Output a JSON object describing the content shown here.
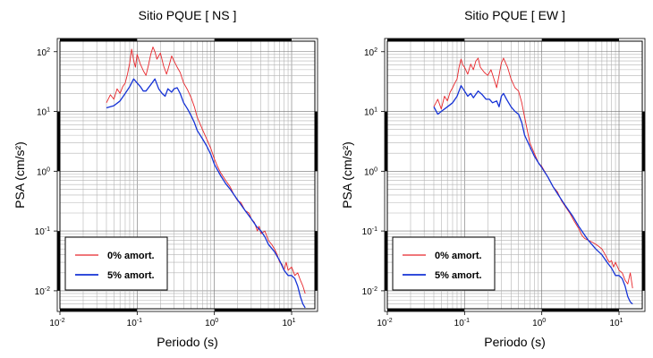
{
  "chart_data": [
    {
      "type": "line",
      "title": "Sitio PQUE [ NS ]",
      "xlabel": "Periodo (s)",
      "ylabel": "PSA (cm/s²)",
      "xscale": "log",
      "yscale": "log",
      "xlim": [
        0.01,
        20
      ],
      "ylim": [
        0.005,
        150
      ],
      "grid": true,
      "legend": "bottom-left",
      "x_ticks": [
        {
          "base": "10",
          "exp": "-2",
          "value": 0.01
        },
        {
          "base": "10",
          "exp": "-1",
          "value": 0.1
        },
        {
          "base": "10",
          "exp": "0",
          "value": 1
        },
        {
          "base": "10",
          "exp": "1",
          "value": 10
        }
      ],
      "y_ticks": [
        {
          "base": "10",
          "exp": "-2",
          "value": 0.01
        },
        {
          "base": "10",
          "exp": "-1",
          "value": 0.1
        },
        {
          "base": "10",
          "exp": "0",
          "value": 1
        },
        {
          "base": "10",
          "exp": "1",
          "value": 10
        },
        {
          "base": "10",
          "exp": "2",
          "value": 100
        }
      ],
      "series": [
        {
          "name": "0% amort.",
          "color": "#e8262b",
          "points": [
            [
              0.04,
              14
            ],
            [
              0.045,
              19
            ],
            [
              0.05,
              16
            ],
            [
              0.055,
              24
            ],
            [
              0.06,
              20
            ],
            [
              0.065,
              26
            ],
            [
              0.07,
              30
            ],
            [
              0.075,
              42
            ],
            [
              0.08,
              65
            ],
            [
              0.085,
              110
            ],
            [
              0.09,
              72
            ],
            [
              0.095,
              55
            ],
            [
              0.1,
              90
            ],
            [
              0.11,
              62
            ],
            [
              0.12,
              48
            ],
            [
              0.13,
              40
            ],
            [
              0.14,
              60
            ],
            [
              0.15,
              90
            ],
            [
              0.16,
              120
            ],
            [
              0.17,
              100
            ],
            [
              0.18,
              75
            ],
            [
              0.2,
              95
            ],
            [
              0.22,
              58
            ],
            [
              0.24,
              42
            ],
            [
              0.26,
              60
            ],
            [
              0.28,
              85
            ],
            [
              0.3,
              70
            ],
            [
              0.33,
              55
            ],
            [
              0.36,
              45
            ],
            [
              0.4,
              30
            ],
            [
              0.45,
              23
            ],
            [
              0.5,
              17
            ],
            [
              0.55,
              12
            ],
            [
              0.6,
              8
            ],
            [
              0.7,
              5
            ],
            [
              0.8,
              3.4
            ],
            [
              0.9,
              2.4
            ],
            [
              1,
              1.6
            ],
            [
              1.1,
              1.2
            ],
            [
              1.2,
              0.95
            ],
            [
              1.4,
              0.7
            ],
            [
              1.6,
              0.55
            ],
            [
              1.8,
              0.4
            ],
            [
              2,
              0.32
            ],
            [
              2.2,
              0.3
            ],
            [
              2.5,
              0.22
            ],
            [
              2.8,
              0.2
            ],
            [
              3,
              0.16
            ],
            [
              3.3,
              0.14
            ],
            [
              3.6,
              0.1
            ],
            [
              3.8,
              0.12
            ],
            [
              4,
              0.09
            ],
            [
              4.5,
              0.1
            ],
            [
              5,
              0.07
            ],
            [
              5.5,
              0.06
            ],
            [
              6,
              0.05
            ],
            [
              6.5,
              0.04
            ],
            [
              7,
              0.03
            ],
            [
              7.5,
              0.028
            ],
            [
              8,
              0.022
            ],
            [
              8.5,
              0.03
            ],
            [
              9,
              0.022
            ],
            [
              10,
              0.025
            ],
            [
              11,
              0.018
            ],
            [
              12,
              0.02
            ],
            [
              13,
              0.015
            ],
            [
              14,
              0.012
            ],
            [
              15,
              0.009
            ]
          ]
        },
        {
          "name": "5% amort.",
          "color": "#1532d6",
          "points": [
            [
              0.04,
              11.5
            ],
            [
              0.05,
              12.5
            ],
            [
              0.06,
              15
            ],
            [
              0.07,
              20
            ],
            [
              0.08,
              26
            ],
            [
              0.09,
              35
            ],
            [
              0.1,
              30
            ],
            [
              0.11,
              26
            ],
            [
              0.12,
              22
            ],
            [
              0.13,
              22
            ],
            [
              0.15,
              28
            ],
            [
              0.17,
              35
            ],
            [
              0.19,
              24
            ],
            [
              0.21,
              20
            ],
            [
              0.23,
              18
            ],
            [
              0.25,
              24
            ],
            [
              0.28,
              21
            ],
            [
              0.3,
              24
            ],
            [
              0.33,
              25
            ],
            [
              0.36,
              20
            ],
            [
              0.4,
              14
            ],
            [
              0.45,
              11
            ],
            [
              0.5,
              8.5
            ],
            [
              0.55,
              6.5
            ],
            [
              0.6,
              4.8
            ],
            [
              0.7,
              3.5
            ],
            [
              0.8,
              2.6
            ],
            [
              0.9,
              1.9
            ],
            [
              1,
              1.3
            ],
            [
              1.2,
              0.85
            ],
            [
              1.4,
              0.62
            ],
            [
              1.6,
              0.5
            ],
            [
              2,
              0.33
            ],
            [
              2.5,
              0.22
            ],
            [
              3,
              0.16
            ],
            [
              3.5,
              0.12
            ],
            [
              4,
              0.1
            ],
            [
              4.5,
              0.08
            ],
            [
              5,
              0.06
            ],
            [
              6,
              0.045
            ],
            [
              7,
              0.032
            ],
            [
              8,
              0.022
            ],
            [
              9,
              0.018
            ],
            [
              10,
              0.018
            ],
            [
              11,
              0.016
            ],
            [
              12,
              0.012
            ],
            [
              13,
              0.008
            ],
            [
              14,
              0.006
            ],
            [
              15,
              0.0052
            ]
          ]
        }
      ]
    },
    {
      "type": "line",
      "title": "Sitio PQUE [ EW ]",
      "xlabel": "Periodo (s)",
      "ylabel": "PSA (cm/s²)",
      "xscale": "log",
      "yscale": "log",
      "xlim": [
        0.01,
        20
      ],
      "ylim": [
        0.005,
        150
      ],
      "grid": true,
      "legend": "bottom-left",
      "x_ticks": [
        {
          "base": "10",
          "exp": "-2",
          "value": 0.01
        },
        {
          "base": "10",
          "exp": "-1",
          "value": 0.1
        },
        {
          "base": "10",
          "exp": "0",
          "value": 1
        },
        {
          "base": "10",
          "exp": "1",
          "value": 10
        }
      ],
      "y_ticks": [
        {
          "base": "10",
          "exp": "-2",
          "value": 0.01
        },
        {
          "base": "10",
          "exp": "-1",
          "value": 0.1
        },
        {
          "base": "10",
          "exp": "0",
          "value": 1
        },
        {
          "base": "10",
          "exp": "1",
          "value": 10
        },
        {
          "base": "10",
          "exp": "2",
          "value": 100
        }
      ],
      "series": [
        {
          "name": "0% amort.",
          "color": "#e8262b",
          "points": [
            [
              0.04,
              12
            ],
            [
              0.045,
              16
            ],
            [
              0.05,
              11
            ],
            [
              0.055,
              18
            ],
            [
              0.06,
              15
            ],
            [
              0.065,
              21
            ],
            [
              0.07,
              25
            ],
            [
              0.075,
              30
            ],
            [
              0.08,
              35
            ],
            [
              0.085,
              55
            ],
            [
              0.09,
              75
            ],
            [
              0.095,
              60
            ],
            [
              0.1,
              55
            ],
            [
              0.11,
              42
            ],
            [
              0.12,
              62
            ],
            [
              0.13,
              50
            ],
            [
              0.14,
              70
            ],
            [
              0.15,
              78
            ],
            [
              0.16,
              55
            ],
            [
              0.18,
              45
            ],
            [
              0.2,
              40
            ],
            [
              0.22,
              50
            ],
            [
              0.24,
              35
            ],
            [
              0.26,
              25
            ],
            [
              0.28,
              40
            ],
            [
              0.3,
              65
            ],
            [
              0.32,
              78
            ],
            [
              0.34,
              65
            ],
            [
              0.36,
              55
            ],
            [
              0.4,
              35
            ],
            [
              0.45,
              25
            ],
            [
              0.5,
              22
            ],
            [
              0.55,
              14
            ],
            [
              0.6,
              8
            ],
            [
              0.7,
              3
            ],
            [
              0.8,
              2
            ],
            [
              0.9,
              1.4
            ],
            [
              1,
              1.2
            ],
            [
              1.2,
              0.8
            ],
            [
              1.4,
              0.55
            ],
            [
              1.6,
              0.45
            ],
            [
              1.8,
              0.32
            ],
            [
              2,
              0.26
            ],
            [
              2.3,
              0.2
            ],
            [
              2.6,
              0.15
            ],
            [
              3,
              0.11
            ],
            [
              3.3,
              0.085
            ],
            [
              3.6,
              0.075
            ],
            [
              4,
              0.07
            ],
            [
              4.5,
              0.065
            ],
            [
              5,
              0.06
            ],
            [
              5.5,
              0.055
            ],
            [
              6,
              0.05
            ],
            [
              6.5,
              0.042
            ],
            [
              7,
              0.035
            ],
            [
              7.5,
              0.03
            ],
            [
              8,
              0.032
            ],
            [
              8.5,
              0.025
            ],
            [
              9,
              0.03
            ],
            [
              10,
              0.022
            ],
            [
              11,
              0.02
            ],
            [
              12,
              0.015
            ],
            [
              13,
              0.013
            ],
            [
              14,
              0.02
            ],
            [
              15,
              0.011
            ]
          ]
        },
        {
          "name": "5% amort.",
          "color": "#1532d6",
          "points": [
            [
              0.04,
              12
            ],
            [
              0.045,
              9
            ],
            [
              0.05,
              10
            ],
            [
              0.06,
              12
            ],
            [
              0.07,
              14
            ],
            [
              0.08,
              18
            ],
            [
              0.09,
              27
            ],
            [
              0.1,
              22
            ],
            [
              0.11,
              18
            ],
            [
              0.12,
              20
            ],
            [
              0.13,
              17
            ],
            [
              0.15,
              22
            ],
            [
              0.17,
              19
            ],
            [
              0.19,
              16
            ],
            [
              0.21,
              16
            ],
            [
              0.23,
              14
            ],
            [
              0.26,
              15
            ],
            [
              0.28,
              12
            ],
            [
              0.3,
              18
            ],
            [
              0.32,
              20
            ],
            [
              0.35,
              16
            ],
            [
              0.4,
              12
            ],
            [
              0.45,
              10
            ],
            [
              0.5,
              9
            ],
            [
              0.55,
              6.5
            ],
            [
              0.6,
              4
            ],
            [
              0.7,
              2.6
            ],
            [
              0.8,
              1.8
            ],
            [
              0.9,
              1.4
            ],
            [
              1,
              1.15
            ],
            [
              1.2,
              0.8
            ],
            [
              1.4,
              0.55
            ],
            [
              1.6,
              0.42
            ],
            [
              2,
              0.27
            ],
            [
              2.5,
              0.18
            ],
            [
              3,
              0.12
            ],
            [
              3.5,
              0.09
            ],
            [
              4,
              0.07
            ],
            [
              5,
              0.05
            ],
            [
              6,
              0.04
            ],
            [
              7,
              0.03
            ],
            [
              8,
              0.024
            ],
            [
              9,
              0.018
            ],
            [
              10,
              0.018
            ],
            [
              11,
              0.016
            ],
            [
              12,
              0.012
            ],
            [
              13,
              0.008
            ],
            [
              14,
              0.0065
            ],
            [
              15,
              0.006
            ]
          ]
        }
      ]
    }
  ]
}
